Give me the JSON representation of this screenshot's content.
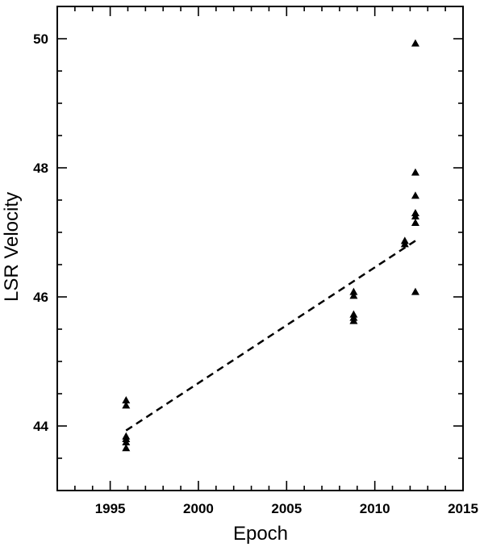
{
  "chart_data": {
    "type": "scatter",
    "title": "",
    "xlabel": "Epoch",
    "ylabel": "LSR Velocity",
    "xlim": [
      1992,
      2015
    ],
    "ylim": [
      43,
      50.5
    ],
    "x_ticks": [
      1995,
      2000,
      2005,
      2010,
      2015
    ],
    "x_tick_labels": [
      "1995",
      "2000",
      "2005",
      "2010",
      "2015"
    ],
    "y_ticks": [
      44,
      46,
      48,
      50
    ],
    "y_tick_labels": [
      "44",
      "46",
      "48",
      "50"
    ],
    "x_minor_step": 1,
    "y_minor_step": 0.5,
    "grid": false,
    "legend": "none",
    "colors": {
      "points": "#000000",
      "fit_line": "#000000",
      "axes": "#000000"
    },
    "series": [
      {
        "marker": "triangle",
        "points": [
          {
            "x": 1995.9,
            "y": 44.4
          },
          {
            "x": 1995.9,
            "y": 44.32
          },
          {
            "x": 1995.9,
            "y": 43.84
          },
          {
            "x": 1995.9,
            "y": 43.8
          },
          {
            "x": 1995.9,
            "y": 43.75
          },
          {
            "x": 1995.9,
            "y": 43.66
          },
          {
            "x": 2008.8,
            "y": 46.08
          },
          {
            "x": 2008.8,
            "y": 46.02
          },
          {
            "x": 2008.8,
            "y": 45.73
          },
          {
            "x": 2008.8,
            "y": 45.68
          },
          {
            "x": 2008.8,
            "y": 45.63
          },
          {
            "x": 2011.7,
            "y": 46.87
          },
          {
            "x": 2011.7,
            "y": 46.82
          },
          {
            "x": 2012.3,
            "y": 49.93
          },
          {
            "x": 2012.3,
            "y": 47.93
          },
          {
            "x": 2012.3,
            "y": 47.57
          },
          {
            "x": 2012.3,
            "y": 47.3
          },
          {
            "x": 2012.3,
            "y": 47.25
          },
          {
            "x": 2012.3,
            "y": 47.15
          },
          {
            "x": 2012.3,
            "y": 46.08
          }
        ]
      },
      {
        "line_style": "dashed",
        "points": [
          {
            "x": 1995.9,
            "y": 43.93
          },
          {
            "x": 2012.3,
            "y": 46.87
          }
        ]
      }
    ]
  }
}
